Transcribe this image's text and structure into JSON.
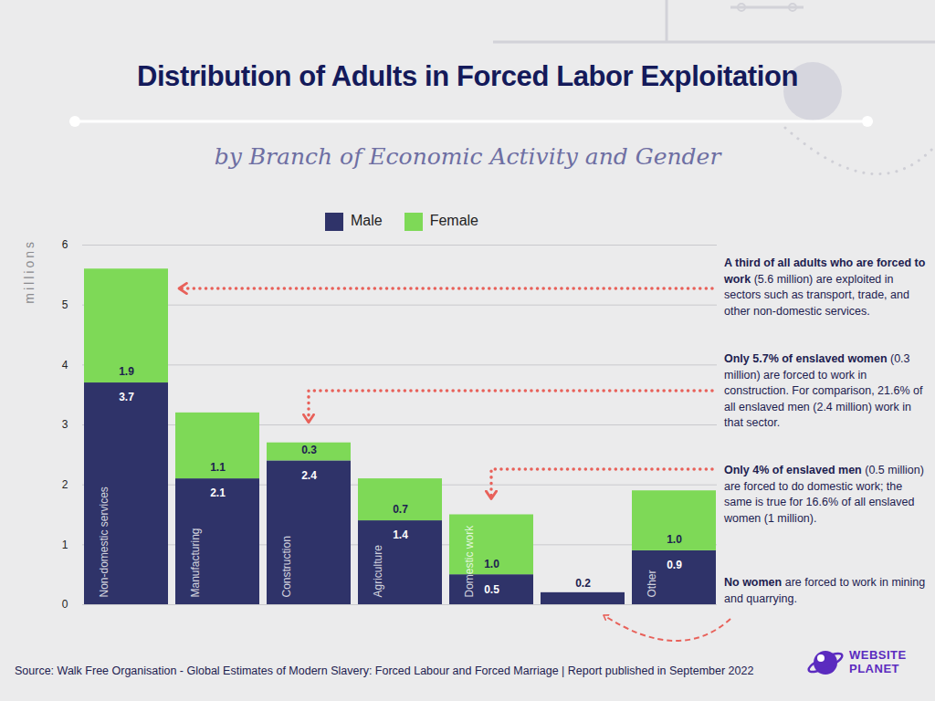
{
  "chart_data": {
    "type": "bar",
    "title": "Distribution of Adults in Forced Labor Exploitation",
    "subtitle": "by Branch of Economic Activity and Gender",
    "y_label": "millions",
    "categories": [
      "Non-domestic services",
      "Manufacturing",
      "Construction",
      "Agriculture",
      "Domestic work",
      null,
      "Other"
    ],
    "series": [
      {
        "name": "Male",
        "color": "#2f3369",
        "values": [
          3.7,
          2.1,
          2.4,
          1.4,
          0.5,
          0.2,
          0.9
        ],
        "value_labels": [
          "3.7",
          "2.1",
          "2.4",
          "1.4",
          "0.5",
          "0.2",
          "0.9"
        ]
      },
      {
        "name": "Female",
        "color": "#7ed957",
        "values": [
          1.9,
          1.1,
          0.3,
          0.7,
          1.0,
          null,
          1.0
        ],
        "value_labels": [
          "1.9",
          "1.1",
          "0.3",
          "0.7",
          "1.0",
          null,
          "1.0"
        ]
      }
    ],
    "ylim": [
      0,
      6
    ],
    "yticks": [
      0,
      1,
      2,
      3,
      4,
      5,
      6
    ],
    "stacked": true,
    "grid": true,
    "legend": "top",
    "data_labels": true,
    "annotations": [
      {
        "bold": "A third of all adults who are forced to work",
        "text": " (5.6 million) are exploited in sectors such as transport, trade, and other non-domestic services."
      },
      {
        "bold": "Only 5.7% of enslaved women",
        "text": " (0.3 million) are forced to work in construction. For comparison, 21.6% of all enslaved men (2.4 million) work in that sector."
      },
      {
        "bold": "Only 4% of enslaved men",
        "text": " (0.5 million) are forced to do domestic work; the same is true for 16.6% of all enslaved women (1 million)."
      },
      {
        "bold": "No women",
        "text": " are forced to work in mining and quarrying."
      }
    ],
    "source": "Source: Walk Free Organisation - Global Estimates of Modern Slavery: Forced Labour and Forced Marriage | Report published in September 2022",
    "logo": [
      "WEBSITE",
      "PLANET"
    ]
  }
}
